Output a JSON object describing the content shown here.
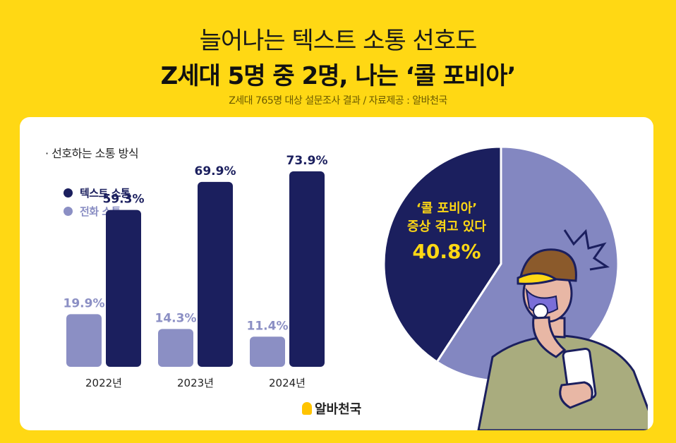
{
  "header": {
    "title_line1": "늘어나는 텍스트 소통 선호도",
    "title_line2": "Z세대 5명 중 2명, 나는 ‘콜 포비아’",
    "subtitle": "Z세대 765명 대상 설문조사 결과 / 자료제공 : 알바천국"
  },
  "section_label": "· 선호하는 소통 방식",
  "colors": {
    "background": "#FFD814",
    "text_series": "#1B1F5E",
    "call_series": "#8B8FC4",
    "pie_light": "#8387C1"
  },
  "logo_text": "알바천국",
  "chart_data": [
    {
      "type": "bar",
      "categories": [
        "2022년",
        "2023년",
        "2024년"
      ],
      "series": [
        {
          "name": "전화 소통",
          "values": [
            19.9,
            14.3,
            11.4
          ],
          "labels": [
            "19.9%",
            "14.3%",
            "11.4%"
          ]
        },
        {
          "name": "텍스트 소통",
          "values": [
            59.3,
            69.9,
            73.9
          ],
          "labels": [
            "59.3%",
            "69.9%",
            "73.9%"
          ]
        }
      ],
      "legend": [
        "텍스트 소통",
        "전화 소통"
      ],
      "legend_position": "top-left",
      "ylim": [
        0,
        80
      ],
      "grid": false
    },
    {
      "type": "pie",
      "slices": [
        {
          "value": 40.8,
          "label_lines": [
            "‘콜 포비아’",
            "증상 겪고 있다",
            "40.8%"
          ]
        },
        {
          "value": 59.2
        }
      ]
    }
  ]
}
